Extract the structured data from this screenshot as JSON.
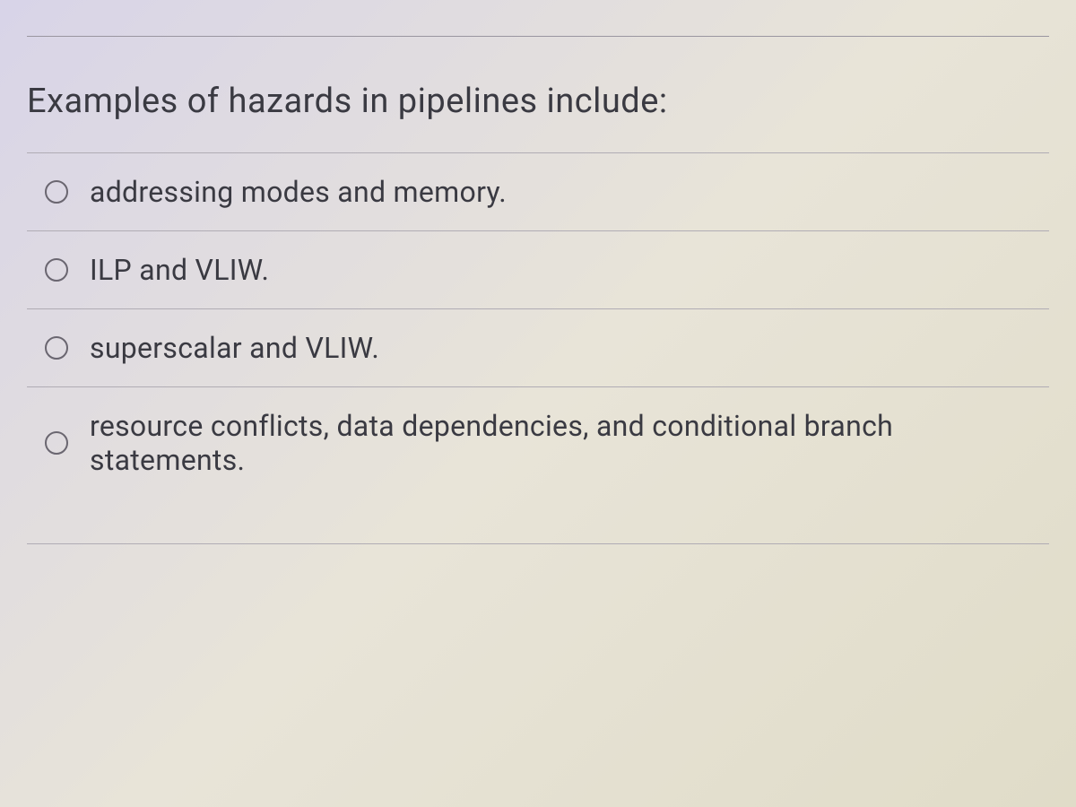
{
  "question": {
    "prompt": "Examples of hazards in pipelines include:",
    "options": [
      {
        "label": "addressing modes and memory."
      },
      {
        "label": "ILP and VLIW."
      },
      {
        "label": "superscalar and VLIW."
      },
      {
        "label": "resource conflicts, data dependencies, and conditional branch statements."
      }
    ]
  }
}
